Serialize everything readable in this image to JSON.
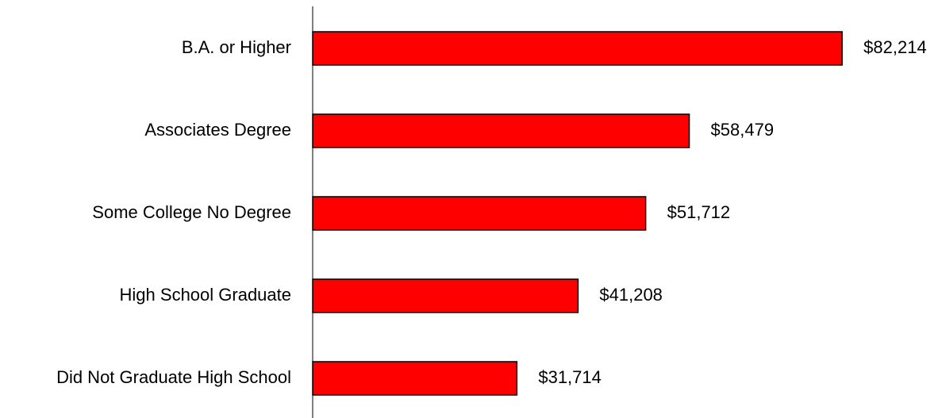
{
  "chart_data": {
    "type": "bar",
    "orientation": "horizontal",
    "categories": [
      "B.A. or Higher",
      "Associates Degree",
      "Some College No Degree",
      "High School Graduate",
      "Did Not Graduate High School"
    ],
    "values": [
      82214,
      58479,
      51712,
      41208,
      31714
    ],
    "value_labels": [
      "$82,214",
      "$58,479",
      "$51,712",
      "$41,208",
      "$31,714"
    ],
    "title": "",
    "xlabel": "",
    "ylabel": "",
    "xlim": [
      0,
      87000
    ],
    "grid": false,
    "legend": "none",
    "bar_color": "#ff0000"
  }
}
